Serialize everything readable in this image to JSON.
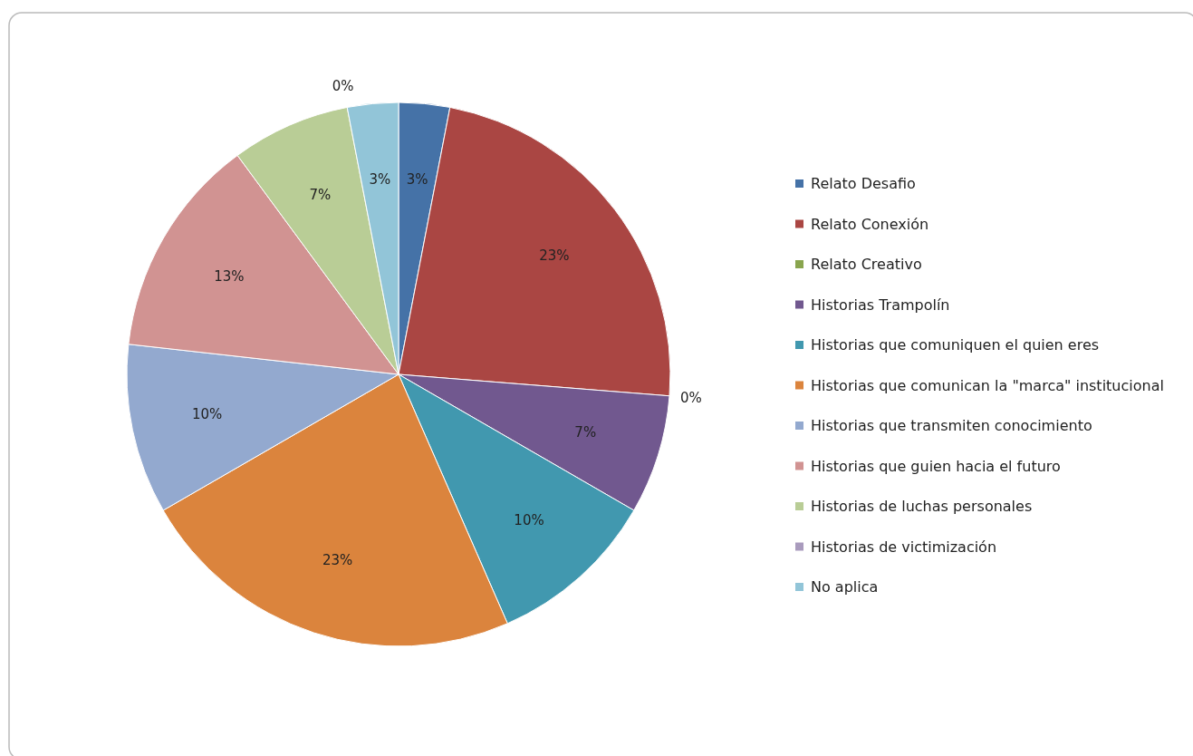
{
  "chart_data": {
    "type": "pie",
    "categories": [
      "Relato Desafio",
      "Relato Conexión",
      "Relato Creativo",
      "Historias Trampolín",
      "Historias que comuniquen el quien eres",
      "Historias que comunican la \"marca\" institucional",
      "Historias que transmiten conocimiento",
      "Historias que guien hacia el futuro",
      "Historias de luchas personales",
      "Historias de victimización",
      "No aplica"
    ],
    "values": [
      3,
      23,
      0,
      7,
      10,
      23,
      10,
      13,
      7,
      0,
      3
    ],
    "value_labels": [
      "3%",
      "23%",
      "0%",
      "7%",
      "10%",
      "23%",
      "10%",
      "13%",
      "7%",
      "0%",
      "3%"
    ],
    "colors": [
      "#4572a7",
      "#aa4643",
      "#89a54e",
      "#71588f",
      "#4198af",
      "#db843d",
      "#93a9cf",
      "#d19392",
      "#b9cd96",
      "#a99bbd",
      "#92c5d8"
    ],
    "legend": "right"
  }
}
